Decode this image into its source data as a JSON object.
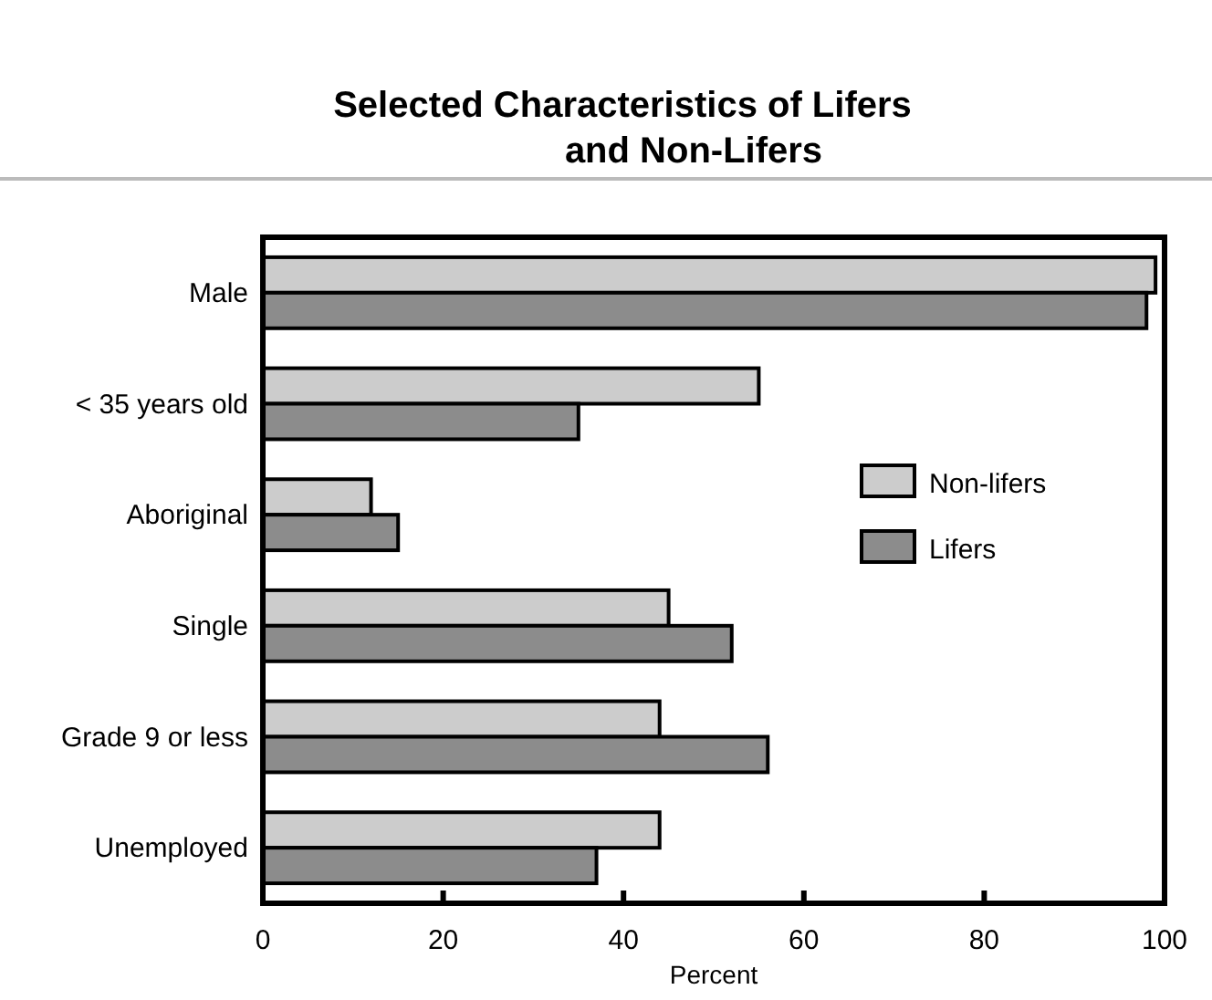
{
  "chart_data": {
    "type": "bar",
    "orientation": "horizontal",
    "title": "Selected Characteristics of Lifers and Non-Lifers",
    "xlabel": "Percent",
    "categories": [
      "Male",
      "< 35 years old",
      "Aboriginal",
      "Single",
      "Grade 9 or less",
      "Unemployed"
    ],
    "series": [
      {
        "name": "Non-lifers",
        "color": "#cccccc",
        "values": [
          99,
          55,
          12,
          45,
          44,
          44
        ]
      },
      {
        "name": "Lifers",
        "color": "#8c8c8c",
        "values": [
          98,
          35,
          15,
          52,
          56,
          37
        ]
      }
    ],
    "xlim": [
      0,
      100
    ],
    "xticks": [
      0,
      20,
      40,
      60,
      80,
      100
    ],
    "legend": "right",
    "grid": false
  }
}
